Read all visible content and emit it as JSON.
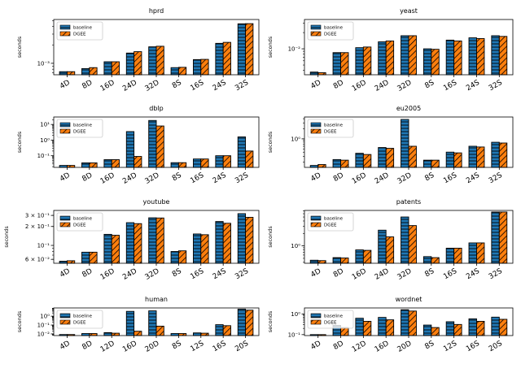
{
  "legend_labels": {
    "baseline": "baseline",
    "dgee": "DGEE"
  },
  "colors": {
    "baseline": "#1f77b4",
    "dgee": "#ff7f0e",
    "edge": "#000000"
  },
  "chart_data": [
    {
      "type": "bar",
      "title": "hprd",
      "ylabel": "seconds",
      "yscale": "log",
      "ylim": [
        0.00065,
        0.0052
      ],
      "yticks": [
        {
          "value": 0.001,
          "label": "10⁻³"
        }
      ],
      "categories": [
        "4D",
        "8D",
        "16D",
        "24D",
        "32D",
        "8S",
        "16S",
        "24S",
        "32S"
      ],
      "series": [
        {
          "name": "baseline",
          "values": [
            0.00073,
            0.00082,
            0.00106,
            0.00147,
            0.00186,
            0.00085,
            0.00115,
            0.00212,
            0.00442
          ]
        },
        {
          "name": "DGEE",
          "values": [
            0.00073,
            0.00085,
            0.00106,
            0.00155,
            0.0019,
            0.00086,
            0.00116,
            0.0022,
            0.00445
          ]
        }
      ],
      "legend": "top-left"
    },
    {
      "type": "bar",
      "title": "yeast",
      "ylabel": "seconds",
      "yscale": "log",
      "ylim": [
        0.0033,
        0.035
      ],
      "yticks": [
        {
          "value": 0.01,
          "label": "10⁻²"
        }
      ],
      "categories": [
        "4D",
        "8D",
        "16D",
        "24D",
        "32D",
        "8S",
        "16S",
        "24S",
        "32S"
      ],
      "series": [
        {
          "name": "baseline",
          "values": [
            0.0037,
            0.0085,
            0.0105,
            0.0135,
            0.0175,
            0.01,
            0.0145,
            0.016,
            0.0175
          ]
        },
        {
          "name": "DGEE",
          "values": [
            0.0036,
            0.0085,
            0.0108,
            0.014,
            0.0175,
            0.0098,
            0.014,
            0.0155,
            0.017
          ]
        }
      ],
      "legend": "top-left"
    },
    {
      "type": "bar",
      "title": "dblp",
      "ylabel": "seconds",
      "yscale": "log",
      "ylim": [
        0.018,
        30
      ],
      "yticks": [
        {
          "value": 0.1,
          "label": "10⁻¹"
        },
        {
          "value": 1,
          "label": "10⁰"
        },
        {
          "value": 10,
          "label": "10¹"
        }
      ],
      "categories": [
        "4D",
        "8D",
        "16D",
        "24D",
        "32D",
        "8S",
        "16S",
        "24S",
        "32S"
      ],
      "series": [
        {
          "name": "baseline",
          "values": [
            0.024,
            0.035,
            0.056,
            3.5,
            18,
            0.036,
            0.062,
            0.1,
            1.6
          ]
        },
        {
          "name": "DGEE",
          "values": [
            0.024,
            0.035,
            0.056,
            0.09,
            8,
            0.036,
            0.062,
            0.1,
            0.2
          ]
        }
      ],
      "legend": "top-left"
    },
    {
      "type": "bar",
      "title": "eu2005",
      "ylabel": "seconds",
      "yscale": "log",
      "ylim": [
        0.14,
        4.5
      ],
      "yticks": [
        {
          "value": 1,
          "label": "10⁰"
        }
      ],
      "categories": [
        "4D",
        "8D",
        "16D",
        "24D",
        "32D",
        "8S",
        "16S",
        "24S",
        "32S"
      ],
      "series": [
        {
          "name": "baseline",
          "values": [
            0.16,
            0.24,
            0.37,
            0.55,
            3.8,
            0.23,
            0.4,
            0.6,
            0.79
          ]
        },
        {
          "name": "DGEE",
          "values": [
            0.17,
            0.23,
            0.34,
            0.52,
            0.6,
            0.23,
            0.38,
            0.57,
            0.75
          ]
        }
      ],
      "legend": "top-left"
    },
    {
      "type": "bar",
      "title": "youtube",
      "ylabel": "seconds",
      "yscale": "log",
      "ylim": [
        0.052,
        0.36
      ],
      "yticks": [
        {
          "value": 0.06,
          "label": "6 × 10⁻²"
        },
        {
          "value": 0.1,
          "label": "10⁻¹"
        },
        {
          "value": 0.2,
          "label": "2 × 10⁻¹"
        },
        {
          "value": 0.3,
          "label": "3 × 10⁻¹"
        }
      ],
      "categories": [
        "4D",
        "8D",
        "16D",
        "24D",
        "32D",
        "8S",
        "16S",
        "24S",
        "32S"
      ],
      "series": [
        {
          "name": "baseline",
          "values": [
            0.056,
            0.078,
            0.15,
            0.23,
            0.275,
            0.08,
            0.152,
            0.24,
            0.32
          ]
        },
        {
          "name": "DGEE",
          "values": [
            0.057,
            0.078,
            0.145,
            0.222,
            0.273,
            0.082,
            0.148,
            0.225,
            0.28
          ]
        }
      ],
      "legend": "top-left"
    },
    {
      "type": "bar",
      "title": "patents",
      "ylabel": "seconds",
      "yscale": "log",
      "ylim": [
        0.38,
        7.2
      ],
      "yticks": [
        {
          "value": 1,
          "label": "10⁰"
        }
      ],
      "categories": [
        "4D",
        "8D",
        "16D",
        "24D",
        "32D",
        "8S",
        "16S",
        "24S",
        "32S"
      ],
      "series": [
        {
          "name": "baseline",
          "values": [
            0.45,
            0.52,
            0.8,
            2.4,
            5.0,
            0.55,
            0.88,
            1.18,
            6.6
          ]
        },
        {
          "name": "DGEE",
          "values": [
            0.44,
            0.51,
            0.78,
            1.65,
            3.1,
            0.52,
            0.88,
            1.18,
            6.6
          ]
        }
      ],
      "legend": "top-left"
    },
    {
      "type": "bar",
      "title": "human",
      "ylabel": "seconds",
      "yscale": "log",
      "ylim": [
        0.0065,
        8.5
      ],
      "yticks": [
        {
          "value": 0.01,
          "label": "10⁻²"
        },
        {
          "value": 0.1,
          "label": "10⁻¹"
        },
        {
          "value": 1,
          "label": "10⁰"
        }
      ],
      "categories": [
        "4D",
        "8D",
        "12D",
        "16D",
        "20D",
        "8S",
        "12S",
        "16S",
        "20S"
      ],
      "series": [
        {
          "name": "baseline",
          "values": [
            0.0085,
            0.011,
            0.014,
            3.5,
            4.0,
            0.011,
            0.013,
            0.11,
            6.2
          ]
        },
        {
          "name": "DGEE",
          "values": [
            0.0085,
            0.011,
            0.012,
            0.02,
            0.075,
            0.011,
            0.012,
            0.085,
            4.8
          ]
        }
      ],
      "legend": "top-left"
    },
    {
      "type": "bar",
      "title": "wordnet",
      "ylabel": "seconds",
      "yscale": "log",
      "ylim": [
        0.09,
        1.95
      ],
      "yticks": [
        {
          "value": 0.1,
          "label": "10⁻¹"
        },
        {
          "value": 1,
          "label": "10⁰"
        }
      ],
      "categories": [
        "4D",
        "8D",
        "12D",
        "16D",
        "20D",
        "8S",
        "12S",
        "16S",
        "20S"
      ],
      "series": [
        {
          "name": "baseline",
          "values": [
            0.1,
            0.28,
            0.62,
            0.68,
            1.6,
            0.29,
            0.42,
            0.58,
            0.7
          ]
        },
        {
          "name": "DGEE",
          "values": [
            0.1,
            0.22,
            0.44,
            0.52,
            1.38,
            0.22,
            0.31,
            0.44,
            0.55
          ]
        }
      ],
      "legend": "top-left"
    }
  ]
}
